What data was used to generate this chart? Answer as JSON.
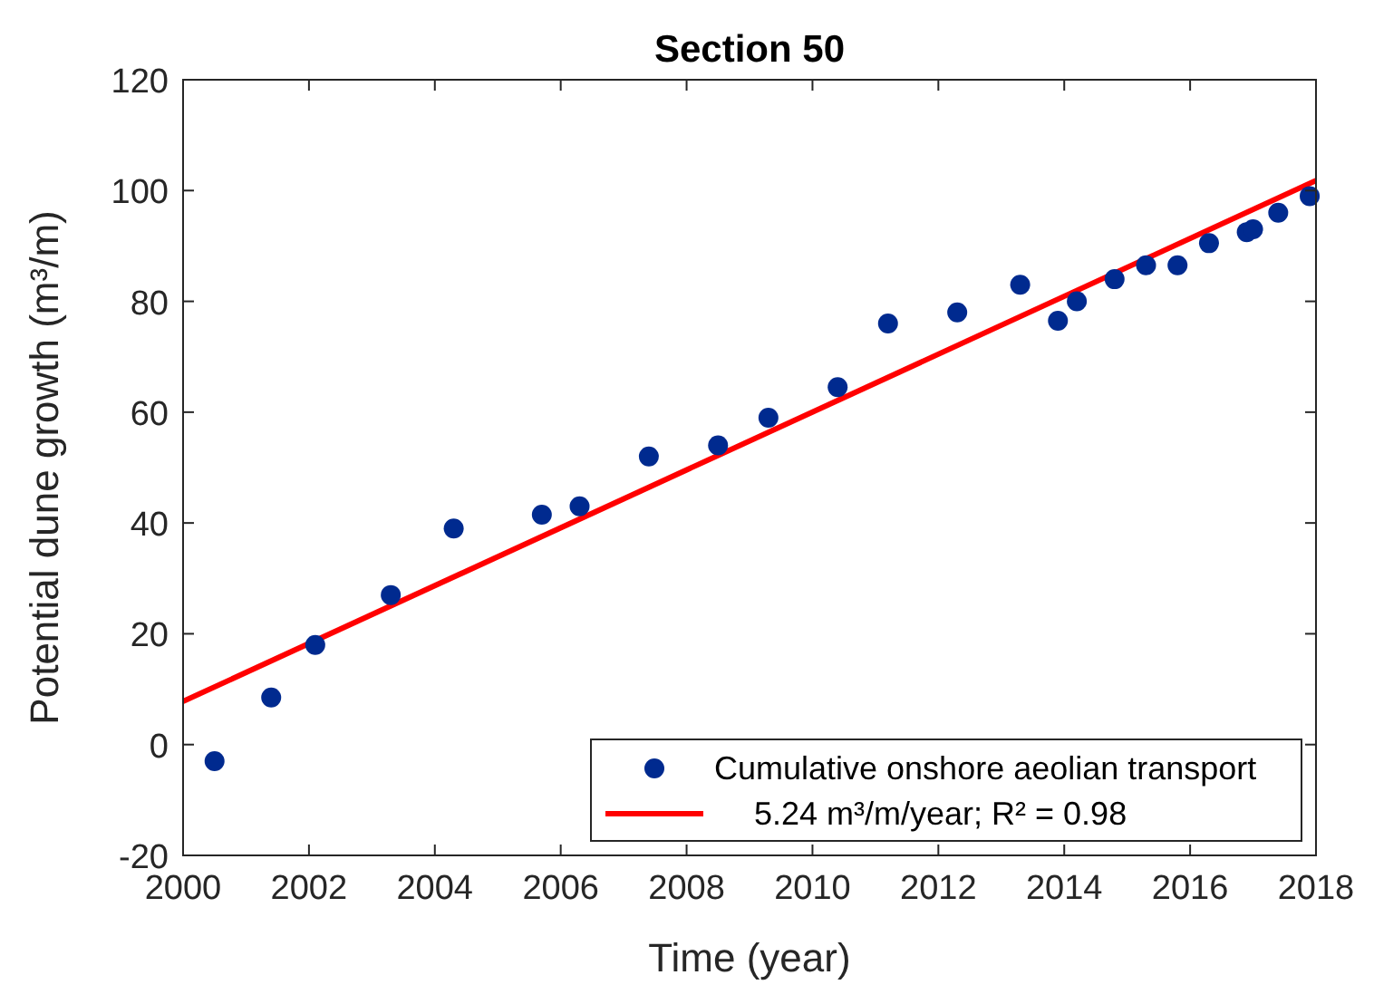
{
  "chart_data": {
    "type": "scatter",
    "title": "Section 50",
    "xlabel": "Time (year)",
    "ylabel": "Potential dune growth (m³/m)",
    "xlim": [
      2000,
      2018
    ],
    "xticks": [
      2000,
      2002,
      2004,
      2006,
      2008,
      2010,
      2012,
      2014,
      2016,
      2018
    ],
    "ylim": [
      -20,
      120
    ],
    "yticks": [
      -20,
      0,
      20,
      40,
      60,
      80,
      100,
      120
    ],
    "legend": "bottom right",
    "series": [
      {
        "name": "Cumulative onshore aeolian transport",
        "marker": "circle",
        "color": "#002a8f",
        "x": [
          2000.5,
          2001.4,
          2002.1,
          2003.3,
          2004.3,
          2005.7,
          2006.3,
          2007.4,
          2008.5,
          2009.3,
          2010.4,
          2011.2,
          2012.3,
          2013.3,
          2013.9,
          2014.2,
          2014.8,
          2015.3,
          2015.8,
          2016.3,
          2016.9,
          2017.0,
          2017.4,
          2017.9
        ],
        "values": [
          -3,
          8.5,
          18,
          27,
          39,
          41.5,
          43,
          52,
          54,
          59,
          64.5,
          76,
          78,
          83,
          76.5,
          80,
          84,
          86.5,
          86.5,
          90.5,
          92.5,
          93,
          96,
          99
        ]
      },
      {
        "name": "5.24 m³/m/year; R² = 0.98",
        "type": "line",
        "marker": "none",
        "color": "#ff0000",
        "x": [
          2000,
          2018
        ],
        "values": [
          7.8,
          101.8
        ]
      }
    ]
  }
}
